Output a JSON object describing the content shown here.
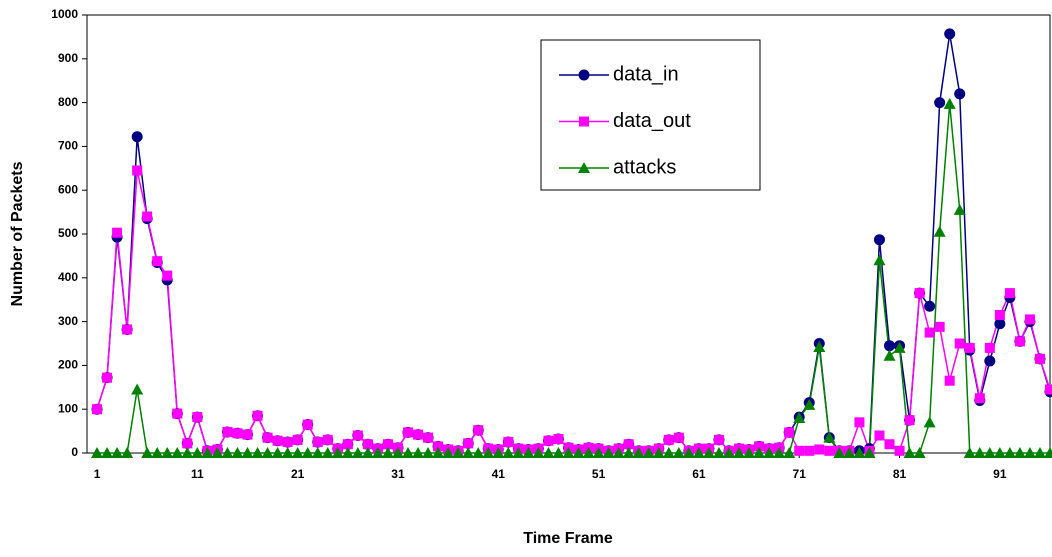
{
  "chart_data": {
    "type": "line",
    "xlabel": "Time Frame",
    "ylabel": "Number of Packets",
    "x": [
      1,
      2,
      3,
      4,
      5,
      6,
      7,
      8,
      9,
      10,
      11,
      12,
      13,
      14,
      15,
      16,
      17,
      18,
      19,
      20,
      21,
      22,
      23,
      24,
      25,
      26,
      27,
      28,
      29,
      30,
      31,
      32,
      33,
      34,
      35,
      36,
      37,
      38,
      39,
      40,
      41,
      42,
      43,
      44,
      45,
      46,
      47,
      48,
      49,
      50,
      51,
      52,
      53,
      54,
      55,
      56,
      57,
      58,
      59,
      60,
      61,
      62,
      63,
      64,
      65,
      66,
      67,
      68,
      69,
      70,
      71,
      72,
      73,
      74,
      75,
      76,
      77,
      78,
      79,
      80,
      81,
      82,
      83,
      84,
      85,
      86,
      87,
      88,
      89,
      90,
      91,
      92,
      93,
      94,
      95,
      96
    ],
    "series": [
      {
        "name": "data_in",
        "color": "#000080",
        "marker": "circle",
        "values": [
          100,
          172,
          493,
          282,
          722,
          535,
          435,
          395,
          90,
          22,
          82,
          5,
          8,
          48,
          45,
          42,
          85,
          35,
          28,
          25,
          30,
          65,
          25,
          30,
          10,
          20,
          40,
          20,
          10,
          20,
          12,
          47,
          42,
          35,
          15,
          8,
          5,
          22,
          52,
          10,
          8,
          25,
          10,
          8,
          10,
          28,
          32,
          12,
          8,
          12,
          10,
          5,
          10,
          20,
          5,
          5,
          10,
          30,
          35,
          5,
          10,
          10,
          30,
          5,
          10,
          8,
          15,
          10,
          12,
          47,
          82,
          115,
          250,
          35,
          5,
          5,
          5,
          10,
          487,
          245,
          245,
          75,
          365,
          335,
          800,
          957,
          820,
          235,
          120,
          210,
          295,
          355,
          255,
          300,
          215,
          140
        ]
      },
      {
        "name": "data_out",
        "color": "#ff00ff",
        "marker": "square",
        "values": [
          100,
          172,
          503,
          282,
          645,
          540,
          438,
          405,
          90,
          22,
          82,
          5,
          8,
          48,
          45,
          42,
          85,
          35,
          28,
          25,
          30,
          65,
          25,
          30,
          10,
          20,
          40,
          20,
          10,
          20,
          12,
          47,
          42,
          35,
          15,
          8,
          5,
          22,
          52,
          10,
          8,
          25,
          10,
          8,
          10,
          28,
          32,
          12,
          8,
          12,
          10,
          5,
          10,
          20,
          5,
          5,
          10,
          30,
          35,
          5,
          10,
          10,
          30,
          5,
          10,
          8,
          15,
          10,
          12,
          47,
          5,
          5,
          8,
          5,
          5,
          5,
          70,
          5,
          40,
          20,
          5,
          75,
          365,
          275,
          288,
          165,
          250,
          240,
          125,
          240,
          315,
          365,
          255,
          305,
          215,
          145
        ]
      },
      {
        "name": "attacks",
        "color": "#008000",
        "marker": "triangle",
        "values": [
          0,
          0,
          0,
          0,
          145,
          0,
          0,
          0,
          0,
          0,
          0,
          0,
          0,
          0,
          0,
          0,
          0,
          0,
          0,
          0,
          0,
          0,
          0,
          0,
          0,
          0,
          0,
          0,
          0,
          0,
          0,
          0,
          0,
          0,
          0,
          0,
          0,
          0,
          0,
          0,
          0,
          0,
          0,
          0,
          0,
          0,
          0,
          0,
          0,
          0,
          0,
          0,
          0,
          0,
          0,
          0,
          0,
          0,
          0,
          0,
          0,
          0,
          0,
          0,
          0,
          0,
          0,
          0,
          0,
          0,
          80,
          110,
          242,
          35,
          0,
          0,
          0,
          0,
          440,
          222,
          240,
          0,
          0,
          70,
          505,
          797,
          555,
          0,
          0,
          0,
          0,
          0,
          0,
          0,
          0,
          0
        ]
      }
    ],
    "xlim": [
      0,
      96
    ],
    "xticks": [
      1,
      11,
      21,
      31,
      41,
      51,
      61,
      71,
      81,
      91
    ],
    "ylim": [
      0,
      1000
    ],
    "yticks": [
      0,
      100,
      200,
      300,
      400,
      500,
      600,
      700,
      800,
      900,
      1000
    ],
    "grid": false,
    "legend": "upper center"
  }
}
